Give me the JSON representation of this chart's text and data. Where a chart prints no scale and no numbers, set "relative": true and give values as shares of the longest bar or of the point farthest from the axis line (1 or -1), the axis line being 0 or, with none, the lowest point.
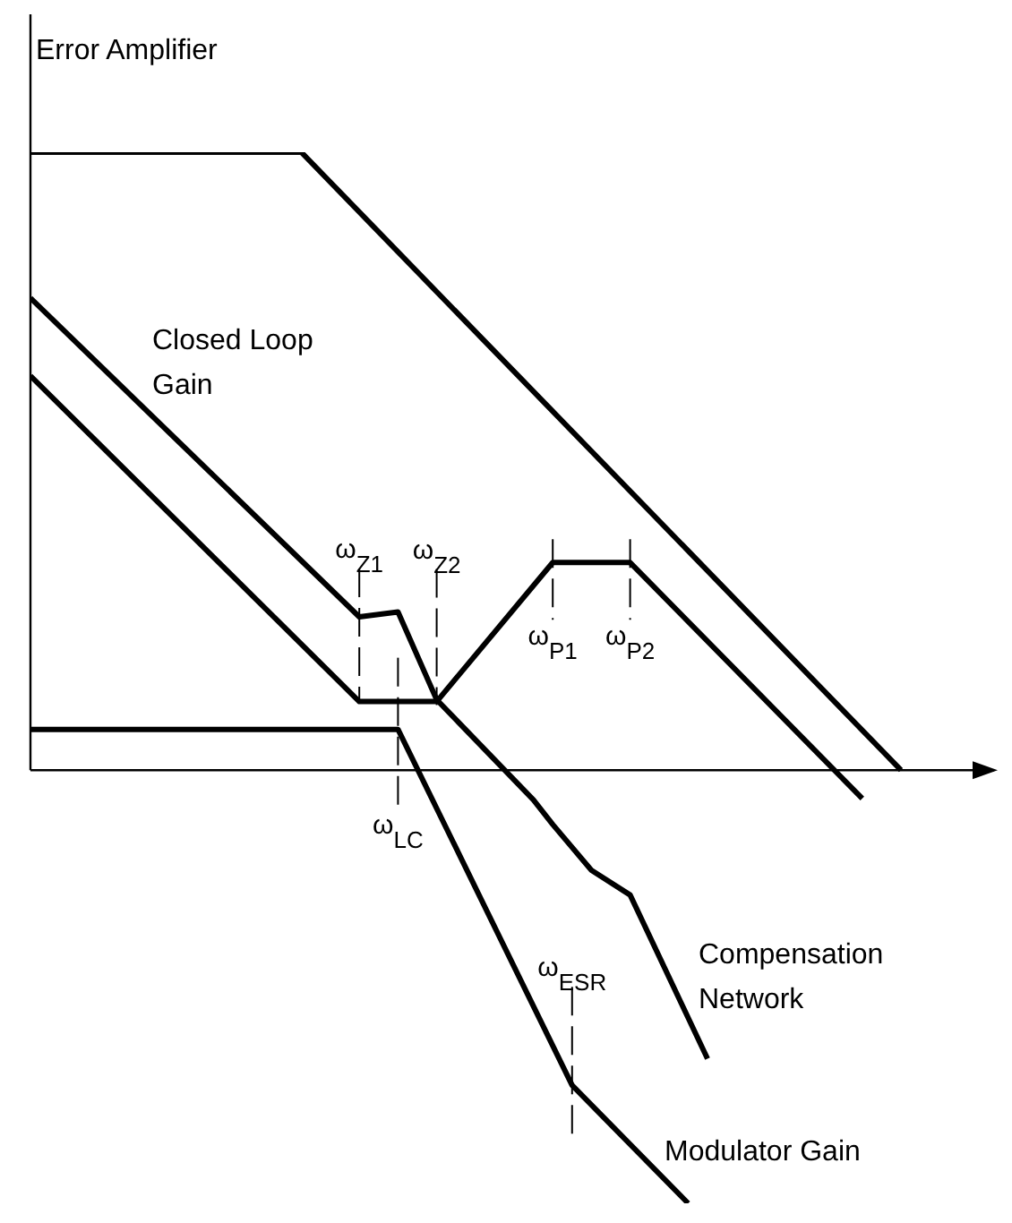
{
  "chart_data": {
    "type": "line",
    "relative": true,
    "line_style": "solid",
    "categories": [
      null,
      null,
      null,
      null,
      null,
      null,
      null,
      null,
      null,
      null,
      null,
      null,
      null,
      null,
      null,
      null,
      null,
      null,
      null,
      null,
      null,
      null,
      null,
      null,
      null,
      null,
      null,
      null,
      null,
      null,
      null,
      null,
      null,
      null,
      null,
      null,
      null,
      null,
      null,
      null,
      null,
      null,
      null,
      null,
      null,
      null,
      null,
      null,
      null,
      null,
      null
    ],
    "series": [
      {
        "color": "#000000",
        "values": [
          1,
          null,
          null,
          null,
          null,
          null,
          null,
          null,
          null,
          null,
          null,
          null,
          null,
          null,
          1,
          null,
          null,
          null,
          null,
          null,
          null,
          null,
          null,
          null,
          null,
          null,
          null,
          null,
          null,
          null,
          null,
          null,
          null,
          null,
          null,
          null,
          null,
          null,
          null,
          null,
          null,
          null,
          null,
          null,
          null,
          0,
          null,
          null,
          null,
          null,
          null
        ]
      },
      {
        "color": "#000000",
        "values": [
          0.764,
          null,
          null,
          null,
          null,
          null,
          null,
          null,
          null,
          null,
          null,
          null,
          null,
          null,
          null,
          null,
          null,
          0.248,
          null,
          0.256,
          null,
          0.114,
          null,
          null,
          null,
          null,
          -0.048,
          -0.088,
          null,
          -0.162,
          null,
          -0.202,
          null,
          null,
          null,
          -0.467,
          null,
          null,
          null,
          null,
          null,
          null,
          null,
          null,
          null,
          null,
          null,
          null,
          null,
          null,
          null
        ]
      },
      {
        "color": "#000000",
        "values": [
          0.638,
          null,
          null,
          null,
          null,
          null,
          null,
          null,
          null,
          null,
          null,
          null,
          null,
          null,
          null,
          null,
          null,
          0.111,
          null,
          null,
          null,
          0.111,
          null,
          null,
          null,
          null,
          null,
          0.336,
          null,
          null,
          null,
          0.336,
          null,
          null,
          null,
          null,
          null,
          null,
          null,
          null,
          null,
          null,
          null,
          -0.046,
          null,
          null,
          null,
          null,
          null,
          null,
          null
        ]
      },
      {
        "color": "#000000",
        "values": [
          0.066,
          null,
          null,
          null,
          null,
          null,
          null,
          null,
          null,
          null,
          null,
          null,
          null,
          null,
          null,
          null,
          null,
          null,
          null,
          0.066,
          null,
          null,
          null,
          null,
          null,
          null,
          null,
          null,
          -0.51,
          null,
          null,
          null,
          null,
          null,
          -0.701,
          null,
          null,
          null,
          null,
          null,
          null,
          null,
          null,
          null,
          null,
          null,
          null,
          null,
          null,
          null,
          null
        ]
      }
    ],
    "annotations": [
      "Error Amplifier",
      "Closed Loop Gain",
      "Compensation Network",
      "Modulator Gain",
      "ω$_{Z1}$",
      "ω$_{Z2}$",
      "ω$_{P1}$",
      "ω$_{P2}$",
      "ω$_{LC}$",
      "ω$_{ESR}$"
    ]
  }
}
